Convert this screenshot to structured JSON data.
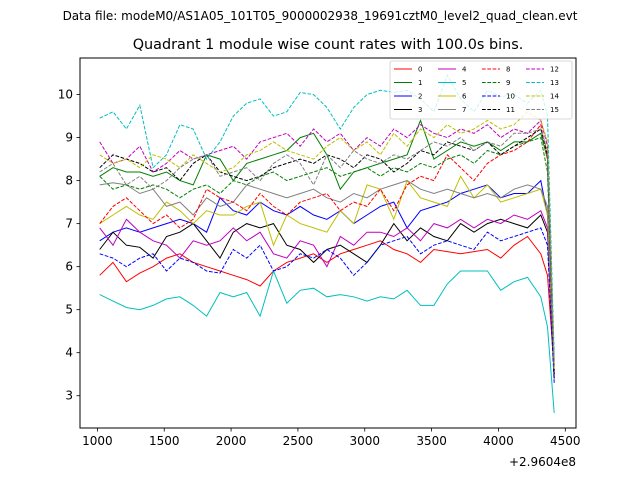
{
  "suptitle": "Data file: modeM0/AS1A05_101T05_9000002938_19691cztM0_level2_quad_clean.evt",
  "chart_data": {
    "type": "line",
    "title": "Quadrant 1 module wise count rates with 100.0s bins.",
    "xlabel": "",
    "ylabel": "",
    "x_offset_label": "+2.9604e8",
    "xlim": [
      870,
      4580
    ],
    "ylim": [
      2.25,
      10.85
    ],
    "xticks": [
      1000,
      1500,
      2000,
      2500,
      3000,
      3500,
      4000,
      4500
    ],
    "yticks": [
      3,
      4,
      5,
      6,
      7,
      8,
      9,
      10
    ],
    "grid": false,
    "legend_position": "top-right",
    "x": [
      1017,
      1117,
      1217,
      1317,
      1417,
      1517,
      1617,
      1717,
      1817,
      1917,
      2017,
      2117,
      2217,
      2317,
      2417,
      2517,
      2617,
      2717,
      2817,
      2917,
      3017,
      3117,
      3217,
      3317,
      3417,
      3517,
      3617,
      3717,
      3817,
      3917,
      4017,
      4117,
      4217,
      4317,
      4367,
      4417
    ],
    "series": [
      {
        "name": "0",
        "color": "#ff0000",
        "dash": "solid",
        "values": [
          5.8,
          6.1,
          5.65,
          5.85,
          6.0,
          6.2,
          6.3,
          6.1,
          6.0,
          5.9,
          5.8,
          5.7,
          5.55,
          5.9,
          6.1,
          6.2,
          6.3,
          6.1,
          6.3,
          6.4,
          6.5,
          6.6,
          6.4,
          6.3,
          6.1,
          6.4,
          6.35,
          6.3,
          6.35,
          6.4,
          6.2,
          6.5,
          6.7,
          6.3,
          5.8,
          3.6
        ]
      },
      {
        "name": "1",
        "color": "#008000",
        "dash": "solid",
        "values": [
          8.1,
          8.3,
          8.2,
          8.2,
          8.1,
          8.2,
          8.0,
          7.9,
          8.6,
          8.5,
          8.0,
          8.4,
          8.5,
          8.6,
          8.7,
          9.0,
          9.1,
          8.6,
          7.8,
          8.2,
          8.3,
          8.4,
          8.5,
          8.6,
          9.4,
          8.5,
          8.7,
          8.9,
          8.8,
          8.9,
          8.7,
          8.9,
          8.9,
          9.1,
          8.5,
          3.4
        ]
      },
      {
        "name": "2",
        "color": "#0000ff",
        "dash": "solid",
        "values": [
          6.6,
          6.8,
          6.9,
          6.8,
          6.9,
          7.0,
          7.1,
          7.0,
          6.8,
          7.6,
          7.3,
          7.2,
          7.5,
          7.3,
          7.2,
          7.4,
          7.2,
          7.1,
          7.3,
          7.0,
          7.2,
          7.4,
          7.5,
          6.9,
          7.3,
          7.4,
          7.5,
          7.7,
          7.8,
          7.9,
          7.6,
          7.7,
          7.7,
          8.0,
          7.2,
          3.5
        ]
      },
      {
        "name": "3",
        "color": "#000000",
        "dash": "solid",
        "values": [
          6.4,
          6.8,
          6.5,
          6.45,
          6.2,
          6.7,
          6.8,
          7.0,
          6.6,
          6.2,
          6.8,
          7.0,
          6.9,
          7.0,
          6.5,
          6.4,
          6.1,
          6.4,
          6.5,
          6.3,
          6.1,
          6.5,
          7.0,
          6.6,
          6.9,
          6.7,
          6.6,
          7.0,
          6.8,
          7.0,
          7.1,
          7.0,
          6.9,
          7.2,
          6.8,
          3.4
        ]
      },
      {
        "name": "4",
        "color": "#bf00bf",
        "dash": "solid",
        "values": [
          6.9,
          6.5,
          7.1,
          6.8,
          6.6,
          6.5,
          6.2,
          6.6,
          6.5,
          6.6,
          6.9,
          6.6,
          6.8,
          6.3,
          6.2,
          6.6,
          6.5,
          6.0,
          6.7,
          6.5,
          6.8,
          6.8,
          6.7,
          6.9,
          6.6,
          7.0,
          6.9,
          7.1,
          6.9,
          7.1,
          7.0,
          7.2,
          7.1,
          7.3,
          6.9,
          3.5
        ]
      },
      {
        "name": "5",
        "color": "#00bfbf",
        "dash": "solid",
        "values": [
          5.35,
          5.2,
          5.05,
          5.0,
          5.1,
          5.25,
          5.3,
          5.1,
          4.85,
          5.4,
          5.3,
          5.4,
          4.85,
          5.9,
          5.15,
          5.45,
          5.5,
          5.3,
          5.35,
          5.3,
          5.2,
          5.3,
          5.25,
          5.45,
          5.1,
          5.1,
          5.6,
          5.9,
          5.9,
          5.9,
          5.45,
          5.65,
          5.75,
          5.3,
          4.6,
          2.6
        ]
      },
      {
        "name": "6",
        "color": "#bfbf00",
        "dash": "solid",
        "values": [
          7.0,
          7.2,
          7.4,
          7.2,
          7.1,
          7.5,
          7.3,
          7.0,
          7.3,
          7.2,
          7.2,
          7.4,
          7.5,
          6.5,
          7.2,
          7.0,
          6.9,
          6.8,
          7.3,
          7.0,
          7.9,
          7.8,
          7.1,
          8.0,
          7.6,
          7.5,
          7.4,
          8.1,
          7.6,
          7.9,
          7.5,
          7.6,
          7.7,
          7.8,
          7.2,
          3.6
        ]
      },
      {
        "name": "7",
        "color": "#808080",
        "dash": "solid",
        "values": [
          7.9,
          7.95,
          7.9,
          7.7,
          7.8,
          7.4,
          7.5,
          7.2,
          7.6,
          7.4,
          7.5,
          7.9,
          7.8,
          7.7,
          7.6,
          7.7,
          7.8,
          7.6,
          7.5,
          7.7,
          7.6,
          7.8,
          7.9,
          8.0,
          7.8,
          7.7,
          7.8,
          7.7,
          7.6,
          7.7,
          7.6,
          7.8,
          7.9,
          7.8,
          7.4,
          3.7
        ]
      },
      {
        "name": "8",
        "color": "#ff0000",
        "dash": "dashed",
        "values": [
          7.0,
          7.4,
          7.6,
          7.3,
          7.0,
          7.2,
          6.9,
          7.1,
          7.8,
          7.6,
          7.5,
          7.3,
          7.7,
          7.4,
          7.2,
          7.5,
          7.6,
          7.7,
          7.3,
          7.5,
          7.4,
          7.8,
          7.3,
          7.9,
          8.1,
          8.0,
          8.6,
          8.3,
          8.0,
          8.4,
          8.6,
          8.7,
          8.9,
          9.3,
          8.5,
          3.8
        ]
      },
      {
        "name": "9",
        "color": "#008000",
        "dash": "dashed",
        "values": [
          8.1,
          7.8,
          7.9,
          7.8,
          7.9,
          7.8,
          7.6,
          7.8,
          7.9,
          7.7,
          8.0,
          7.9,
          8.1,
          8.2,
          8.0,
          8.1,
          8.2,
          8.3,
          8.1,
          8.2,
          8.3,
          8.1,
          8.3,
          8.2,
          8.4,
          8.3,
          8.5,
          8.6,
          8.4,
          8.7,
          8.6,
          8.8,
          8.9,
          9.0,
          8.2,
          3.6
        ]
      },
      {
        "name": "10",
        "color": "#0000ff",
        "dash": "dashed",
        "values": [
          6.3,
          6.2,
          6.0,
          6.2,
          6.3,
          5.9,
          6.2,
          6.1,
          5.9,
          5.85,
          6.4,
          6.2,
          6.5,
          5.9,
          6.0,
          6.3,
          6.2,
          6.4,
          6.2,
          5.8,
          6.1,
          6.5,
          6.6,
          6.7,
          6.3,
          6.5,
          6.6,
          6.5,
          6.4,
          6.8,
          6.6,
          6.7,
          6.8,
          6.9,
          6.5,
          3.3
        ]
      },
      {
        "name": "11",
        "color": "#000000",
        "dash": "dashed",
        "values": [
          8.3,
          8.6,
          8.5,
          8.4,
          8.2,
          8.3,
          8.0,
          8.4,
          8.6,
          8.2,
          8.1,
          8.0,
          8.1,
          8.3,
          8.4,
          8.5,
          8.4,
          8.6,
          8.5,
          8.3,
          8.6,
          8.5,
          8.2,
          8.4,
          8.7,
          8.6,
          8.9,
          8.8,
          8.7,
          8.9,
          8.6,
          8.8,
          9.0,
          9.2,
          8.6,
          3.5
        ]
      },
      {
        "name": "12",
        "color": "#bf00bf",
        "dash": "dashed",
        "values": [
          8.9,
          8.4,
          8.5,
          8.8,
          8.2,
          8.4,
          8.7,
          8.5,
          8.6,
          8.7,
          8.8,
          8.5,
          8.9,
          9.0,
          9.1,
          8.8,
          9.2,
          8.9,
          9.1,
          8.7,
          9.0,
          8.8,
          9.2,
          9.0,
          9.3,
          9.1,
          9.0,
          9.2,
          9.1,
          9.3,
          9.0,
          9.2,
          9.1,
          9.4,
          8.8,
          3.7
        ]
      },
      {
        "name": "13",
        "color": "#00bfbf",
        "dash": "dashed",
        "values": [
          9.45,
          9.6,
          9.2,
          9.75,
          8.3,
          8.6,
          9.3,
          9.2,
          8.5,
          8.9,
          9.5,
          9.8,
          9.9,
          9.5,
          9.6,
          10.05,
          10.0,
          9.7,
          9.2,
          9.7,
          10.0,
          10.1,
          10.05,
          10.1,
          9.9,
          9.6,
          10.45,
          9.9,
          9.6,
          10.1,
          9.95,
          10.0,
          9.8,
          10.1,
          9.5,
          3.9
        ]
      },
      {
        "name": "14",
        "color": "#bfbf00",
        "dash": "dashed",
        "values": [
          8.6,
          8.4,
          8.5,
          8.3,
          8.6,
          8.5,
          8.3,
          8.6,
          8.4,
          8.2,
          8.3,
          8.6,
          8.7,
          8.9,
          8.7,
          8.6,
          8.5,
          8.8,
          9.0,
          8.7,
          8.9,
          8.6,
          9.1,
          8.8,
          9.2,
          9.0,
          9.3,
          9.1,
          9.2,
          9.4,
          9.2,
          9.3,
          9.6,
          9.4,
          8.9,
          3.6
        ]
      },
      {
        "name": "15",
        "color": "#808080",
        "dash": "dashed",
        "values": [
          8.2,
          8.4,
          7.9,
          8.1,
          7.8,
          8.0,
          8.3,
          8.5,
          8.6,
          8.1,
          8.2,
          8.3,
          8.0,
          8.4,
          8.6,
          8.4,
          7.9,
          8.6,
          8.3,
          8.7,
          8.5,
          8.4,
          8.6,
          8.5,
          8.7,
          8.9,
          8.8,
          9.0,
          8.7,
          8.9,
          8.8,
          9.1,
          9.1,
          9.2,
          8.7,
          3.7
        ]
      }
    ]
  }
}
